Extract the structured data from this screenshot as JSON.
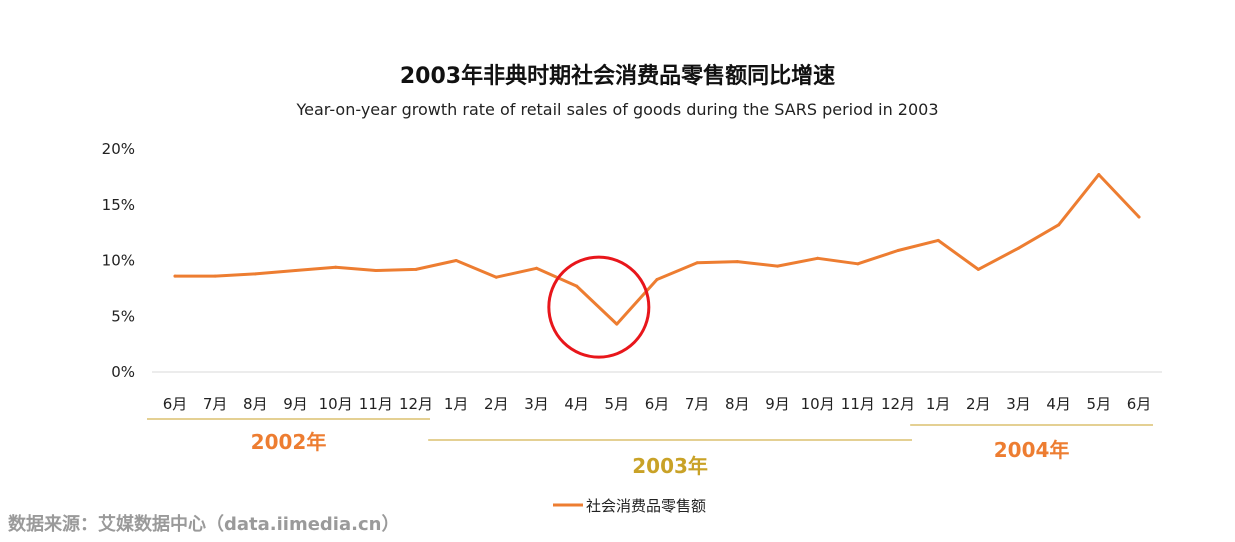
{
  "chart_data": {
    "type": "line",
    "title": "2003年非典时期社会消费品零售额同比增速",
    "subtitle": "Year-on-year growth rate of retail sales of goods during the SARS period in 2003",
    "categories": [
      "6月",
      "7月",
      "8月",
      "9月",
      "10月",
      "11月",
      "12月",
      "1月",
      "2月",
      "3月",
      "4月",
      "5月",
      "6月",
      "7月",
      "8月",
      "9月",
      "10月",
      "11月",
      "12月",
      "1月",
      "2月",
      "3月",
      "4月",
      "5月",
      "6月"
    ],
    "series": [
      {
        "name": "社会消费品零售额",
        "color": "#ED7D31",
        "values": [
          8.6,
          8.6,
          8.8,
          9.1,
          9.4,
          9.1,
          9.2,
          10.0,
          8.5,
          9.3,
          7.7,
          4.3,
          8.3,
          9.8,
          9.9,
          9.5,
          10.2,
          9.7,
          10.9,
          11.8,
          9.2,
          11.1,
          13.2,
          17.7,
          13.9
        ]
      }
    ],
    "ylim": [
      0,
      20
    ],
    "yticks": [
      0,
      5,
      10,
      15,
      20
    ],
    "ytick_labels": [
      "0%",
      "5%",
      "10%",
      "15%",
      "20%"
    ],
    "xlabel": "",
    "ylabel": "",
    "grid": false,
    "legend_position": "bottom",
    "year_groups": [
      {
        "label": "2002年",
        "start": 0,
        "end": 6,
        "color": "#ED7D31",
        "line_color": "#C9A227"
      },
      {
        "label": "2003年",
        "start": 7,
        "end": 18,
        "color": "#C9A227",
        "line_color": "#C9A227"
      },
      {
        "label": "2004年",
        "start": 19,
        "end": 24,
        "color": "#ED7D31",
        "line_color": "#C9A227"
      }
    ],
    "highlight": {
      "category_index": 11,
      "shape": "circle",
      "color": "#E8161B"
    }
  },
  "source": "数据来源：艾媒数据中心（data.iimedia.cn）"
}
